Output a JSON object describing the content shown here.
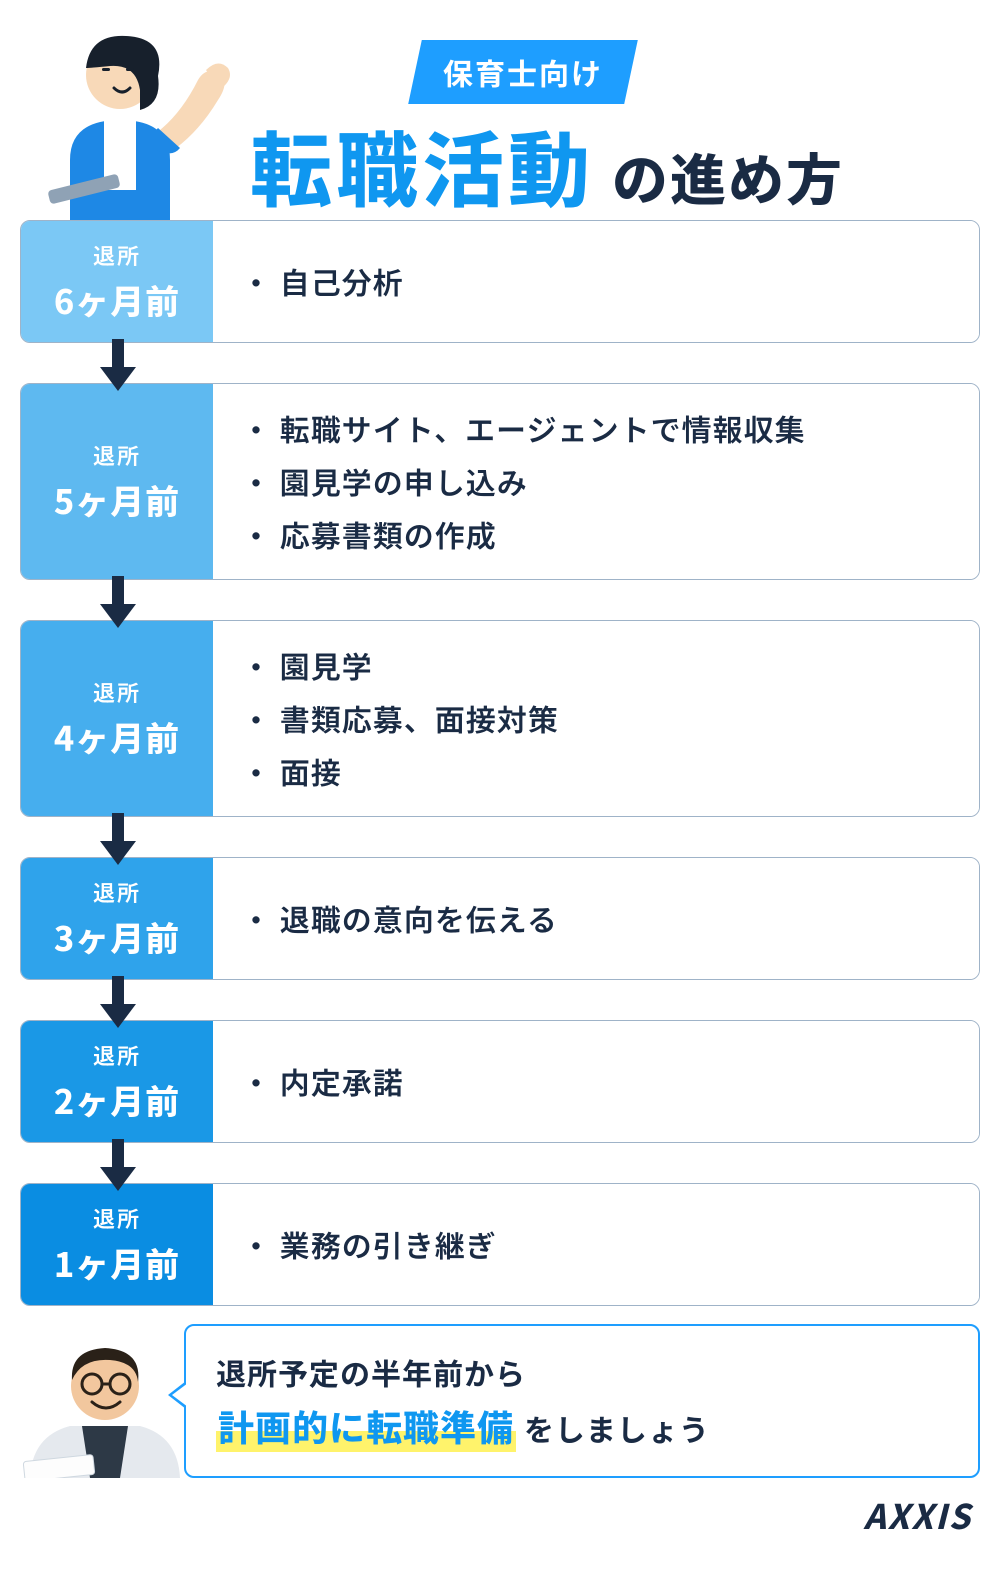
{
  "header": {
    "badge": "保育士向け",
    "title_main": "転職活動",
    "title_sub": "の進め方"
  },
  "arrow_color": "#1a2b44",
  "steps": [
    {
      "left_color": "#7bc8f5",
      "label_prefix": "退所",
      "label_main": "6ヶ月前",
      "items": [
        "・ 自己分析"
      ]
    },
    {
      "left_color": "#5eb9f0",
      "label_prefix": "退所",
      "label_main": "5ヶ月前",
      "items": [
        "・ 転職サイト、エージェントで情報収集",
        "・ 園見学の申し込み",
        "・ 応募書類の作成"
      ]
    },
    {
      "left_color": "#46aeee",
      "label_prefix": "退所",
      "label_main": "4ヶ月前",
      "items": [
        "・ 園見学",
        "・ 書類応募、面接対策",
        "・ 面接"
      ]
    },
    {
      "left_color": "#2fa3eb",
      "label_prefix": "退所",
      "label_main": "3ヶ月前",
      "items": [
        "・ 退職の意向を伝える"
      ]
    },
    {
      "left_color": "#1a98e6",
      "label_prefix": "退所",
      "label_main": "2ヶ月前",
      "items": [
        "・ 内定承諾"
      ]
    },
    {
      "left_color": "#0a8de2",
      "label_prefix": "退所",
      "label_main": "1ヶ月前",
      "items": [
        "・ 業務の引き継ぎ"
      ]
    }
  ],
  "footer": {
    "line1": "退所予定の半年前から",
    "highlight": "計画的に転職準備",
    "tail": " をしましょう",
    "brand": "AXXIS"
  },
  "colors": {
    "accent": "#1e9eff",
    "heading_blue": "#0f97f0",
    "text_dark": "#1a2b44",
    "border": "#9fb3c8",
    "highlight_bg": "#fff36b"
  }
}
